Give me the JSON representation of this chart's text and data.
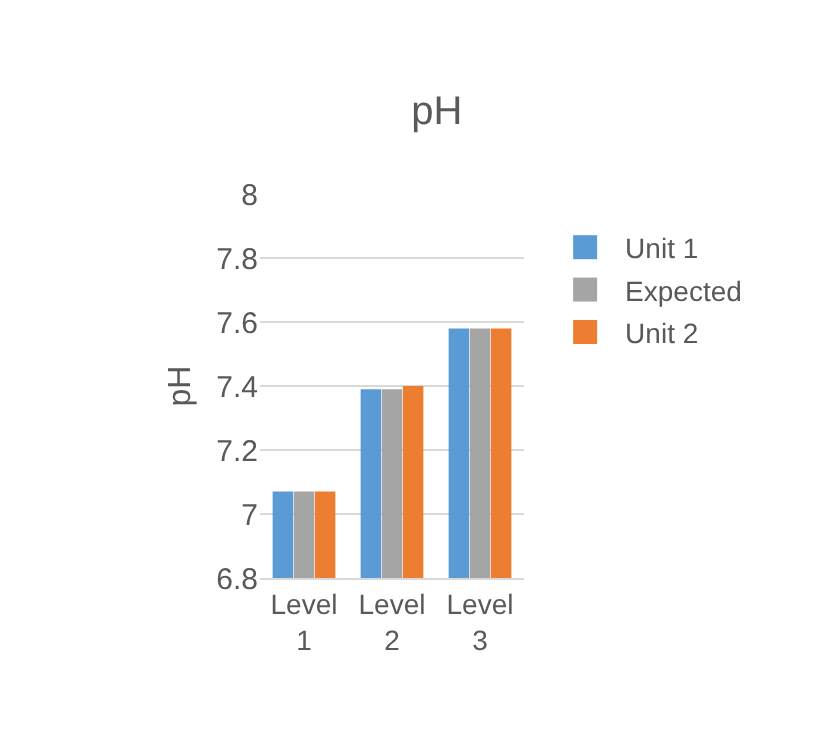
{
  "chart_data": {
    "type": "bar",
    "title": "pH",
    "ylabel": "pH",
    "categories": [
      "Level 1",
      "Level 2",
      "Level 3"
    ],
    "series": [
      {
        "name": "Unit 1",
        "color": "#5b9bd5",
        "values": [
          7.07,
          7.39,
          7.58
        ]
      },
      {
        "name": "Expected",
        "color": "#a5a5a5",
        "values": [
          7.07,
          7.39,
          7.58
        ]
      },
      {
        "name": "Unit 2",
        "color": "#ed7d31",
        "values": [
          7.07,
          7.4,
          7.58
        ]
      }
    ],
    "ylim": [
      6.8,
      8
    ],
    "yticks": [
      6.8,
      7,
      7.2,
      7.4,
      7.6,
      7.8,
      8
    ],
    "grid": "y",
    "legend": "right"
  }
}
